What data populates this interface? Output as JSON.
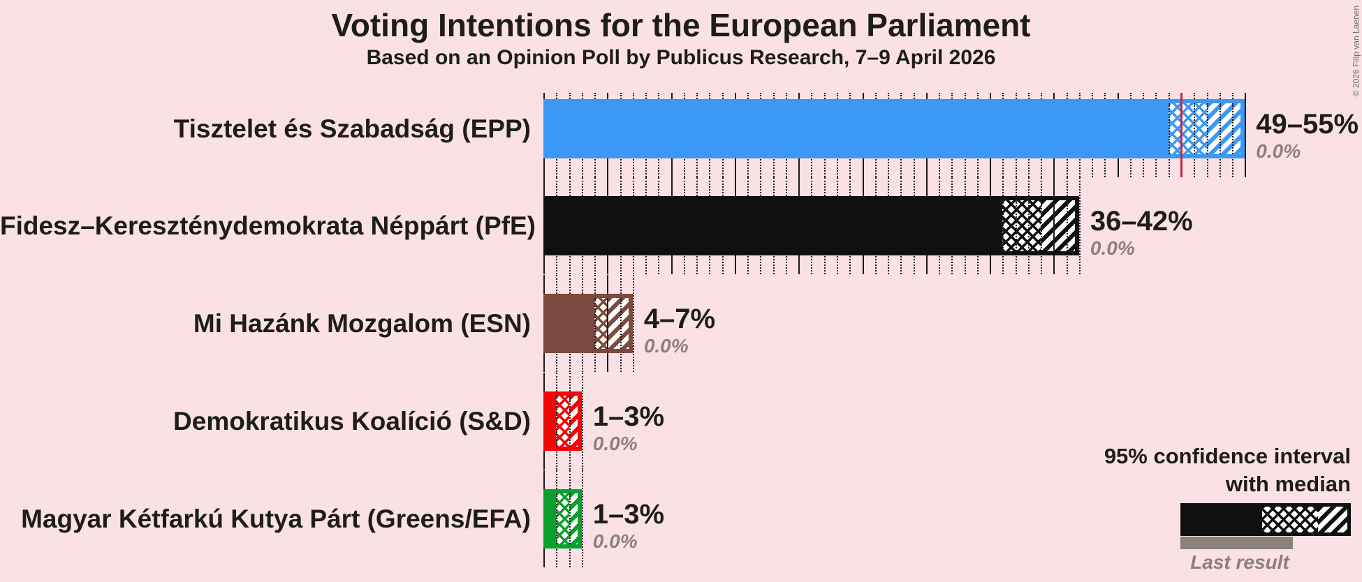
{
  "title": "Voting Intentions for the European Parliament",
  "subtitle": "Based on an Opinion Poll by Publicus Research, 7–9 April 2026",
  "copyright": "© 2026 Filip van Laenen",
  "legend": {
    "ci_label_line1": "95% confidence interval",
    "ci_label_line2": "with median",
    "last_result_label": "Last result"
  },
  "colors": {
    "background": "#FAE1E5",
    "text": "#1d1d1b",
    "muted_gray": "#8a817b",
    "tick": "#1b1b1b",
    "majority_line": "#C22747",
    "hatch_background": "#FFFFFF",
    "last_result_bar": "#8a817b"
  },
  "chart_data": {
    "type": "bar",
    "orientation": "horizontal",
    "unit": "%",
    "x_axis": {
      "min": 0,
      "max": 56,
      "minor_gridline_step": 1,
      "major_gridline_step": 5,
      "gridlines": "dotted minor, solid major"
    },
    "majority_line_pct": 50,
    "legend_position": "bottom-right",
    "series": [
      {
        "party": "Tisztelet és Szabadság (EPP)",
        "color": "#3B99F5",
        "ci_low": 49,
        "median": 52,
        "ci_high": 55,
        "ci_label": "49–55%",
        "last_result": 0.0,
        "last_result_label": "0.0%"
      },
      {
        "party": "Fidesz–Kereszténydemokrata Néppárt (PfE)",
        "color": "#101010",
        "ci_low": 36,
        "median": 39,
        "ci_high": 42,
        "ci_label": "36–42%",
        "last_result": 0.0,
        "last_result_label": "0.0%"
      },
      {
        "party": "Mi Hazánk Mozgalom (ESN)",
        "color": "#7C4A3E",
        "ci_low": 4,
        "median": 5,
        "ci_high": 7,
        "ci_label": "4–7%",
        "last_result": 0.0,
        "last_result_label": "0.0%"
      },
      {
        "party": "Demokratikus Koalíció (S&D)",
        "color": "#F40505",
        "ci_low": 1,
        "median": 2,
        "ci_high": 3,
        "ci_label": "1–3%",
        "last_result": 0.0,
        "last_result_label": "0.0%"
      },
      {
        "party": "Magyar Kétfarkú Kutya Párt (Greens/EFA)",
        "color": "#0BA02B",
        "ci_low": 1,
        "median": 2,
        "ci_high": 3,
        "ci_label": "1–3%",
        "last_result": 0.0,
        "last_result_label": "0.0%"
      }
    ]
  }
}
